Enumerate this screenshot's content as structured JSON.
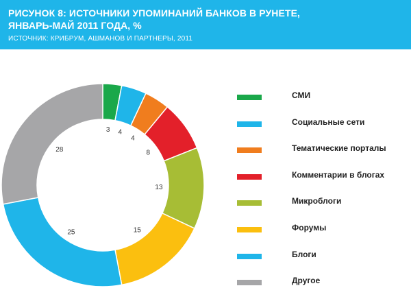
{
  "header": {
    "title_line1": "РИСУНОК 8: ИСТОЧНИКИ УПОМИНАНИЙ БАНКОВ В РУНЕТЕ,",
    "title_line2": "ЯНВАРЬ-МАЙ 2011 ГОДА, %",
    "source": "ИСТОЧНИК: КРИБРУМ, АШМАНОВ И ПАРТНЕРЫ, 2011",
    "background_color": "#1fb5e9"
  },
  "chart_data": {
    "type": "pie",
    "donut": true,
    "title": "РИСУНОК 8: ИСТОЧНИКИ УПОМИНАНИЙ БАНКОВ В РУНЕТЕ, ЯНВАРЬ-МАЙ 2011 ГОДА, %",
    "legend_position": "right",
    "categories": [
      "СМИ",
      "Социальные сети",
      "Тематические порталы",
      "Комментарии в блогах",
      "Микроблоги",
      "Форумы",
      "Блоги",
      "Другое"
    ],
    "values": [
      3,
      4,
      4,
      8,
      13,
      15,
      25,
      28
    ],
    "colors": [
      "#1aa84a",
      "#1fb5e9",
      "#f07d1e",
      "#e3202a",
      "#a7bd35",
      "#fbbf0f",
      "#1fb5e9",
      "#a6a6a8"
    ]
  }
}
